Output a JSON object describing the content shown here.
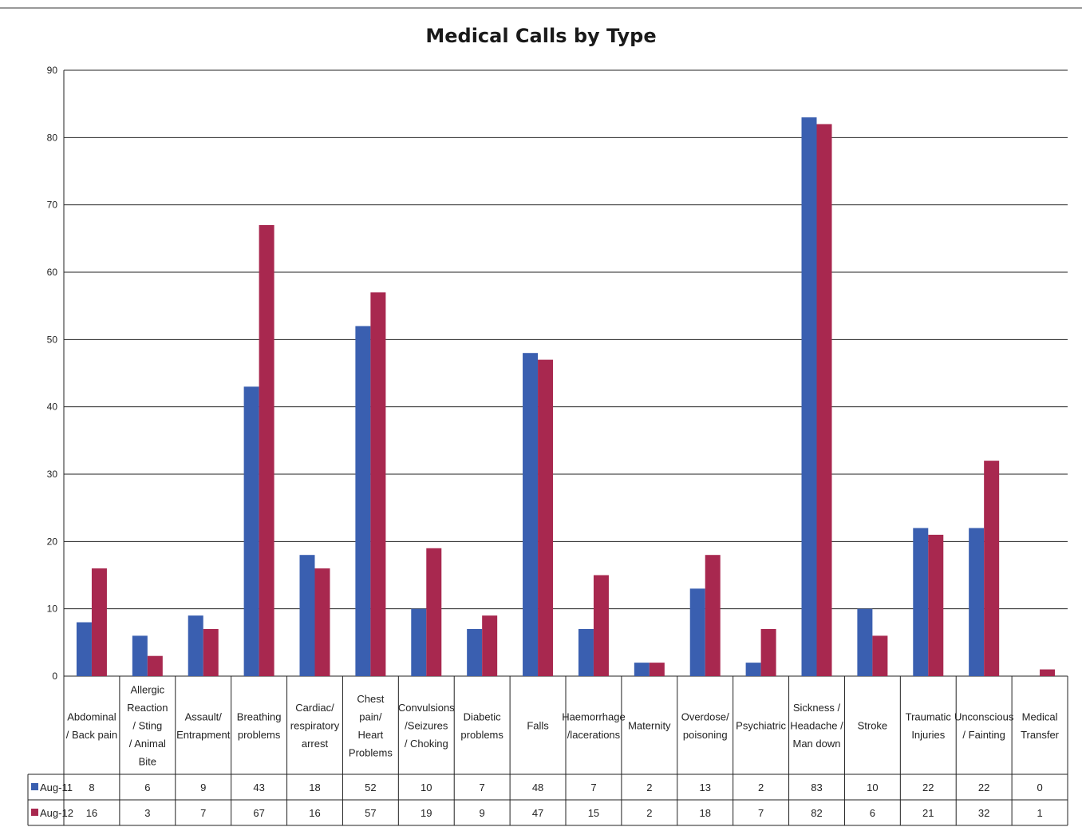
{
  "chart_data": {
    "type": "bar",
    "title": "Medical Calls by Type",
    "xlabel": "",
    "ylabel": "",
    "ylim": [
      0,
      90
    ],
    "yticks": [
      0,
      10,
      20,
      30,
      40,
      50,
      60,
      70,
      80,
      90
    ],
    "grid": true,
    "legend_placement": "data-table-left",
    "categories": [
      [
        "Abdominal",
        "/ Back pain"
      ],
      [
        "Allergic",
        "Reaction",
        "/ Sting",
        "/ Animal",
        "Bite"
      ],
      [
        "Assault/",
        "Entrapment"
      ],
      [
        "Breathing",
        "problems"
      ],
      [
        "Cardiac/",
        "respiratory",
        "arrest"
      ],
      [
        "Chest",
        "pain/",
        "Heart",
        "Problems"
      ],
      [
        "Convulsions",
        "/Seizures",
        "/ Choking"
      ],
      [
        "Diabetic",
        "problems"
      ],
      [
        "Falls"
      ],
      [
        "Haemorrhage",
        "/lacerations"
      ],
      [
        "Maternity"
      ],
      [
        "Overdose/",
        "poisoning"
      ],
      [
        "Psychiatric"
      ],
      [
        "Sickness /",
        "Headache /",
        "Man down"
      ],
      [
        "Stroke"
      ],
      [
        "Traumatic",
        "Injuries"
      ],
      [
        "Unconscious",
        "/ Fainting"
      ],
      [
        "Medical",
        "Transfer"
      ]
    ],
    "series": [
      {
        "name": "Aug-11",
        "color": "#3a5fb0",
        "values": [
          8,
          6,
          9,
          43,
          18,
          52,
          10,
          7,
          48,
          7,
          2,
          13,
          2,
          83,
          10,
          22,
          22,
          0
        ]
      },
      {
        "name": "Aug-12",
        "color": "#a8284f",
        "values": [
          16,
          3,
          7,
          67,
          16,
          57,
          19,
          9,
          47,
          15,
          2,
          18,
          7,
          82,
          6,
          21,
          32,
          1
        ]
      }
    ]
  }
}
